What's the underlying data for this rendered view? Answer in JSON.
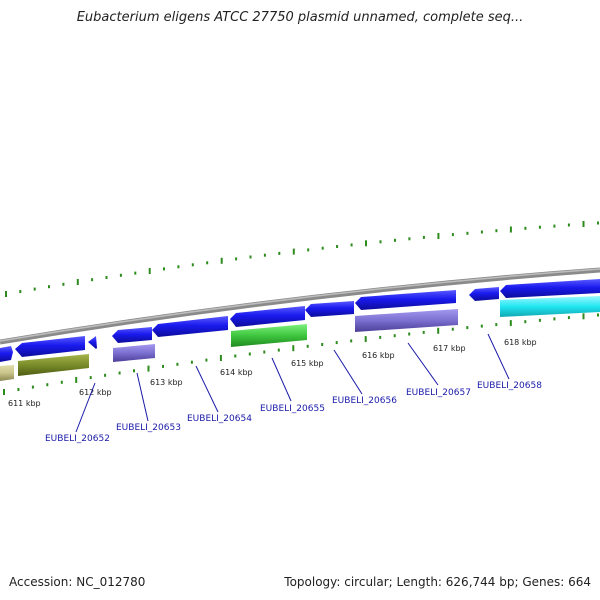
{
  "title": "Eubacterium eligens ATCC 27750 plasmid unnamed, complete seq...",
  "footer": {
    "accession": "Accession: NC_012780",
    "summary": "Topology: circular; Length: 626,744 bp; Genes: 664"
  },
  "ticks": {
    "labels": [
      "611 kbp",
      "612 kbp",
      "613 kbp",
      "614 kbp",
      "615 kbp",
      "616 kbp",
      "617 kbp",
      "618 kbp"
    ]
  },
  "genes": {
    "labels": [
      "EUBELI_20652",
      "EUBELI_20653",
      "EUBELI_20654",
      "EUBELI_20655",
      "EUBELI_20656",
      "EUBELI_20657",
      "EUBELI_20658"
    ]
  },
  "colors": {
    "cds": "#1a1aee",
    "backbone": "#8a8a8a",
    "tick": "#2e8b1e",
    "label": "#1a1aa8",
    "feature_olive": "#7a8c2a",
    "feature_tan": "#c8c48a",
    "feature_purple": "#7b6fd0",
    "feature_green": "#3fc63f",
    "feature_cyan": "#22e6f2"
  }
}
